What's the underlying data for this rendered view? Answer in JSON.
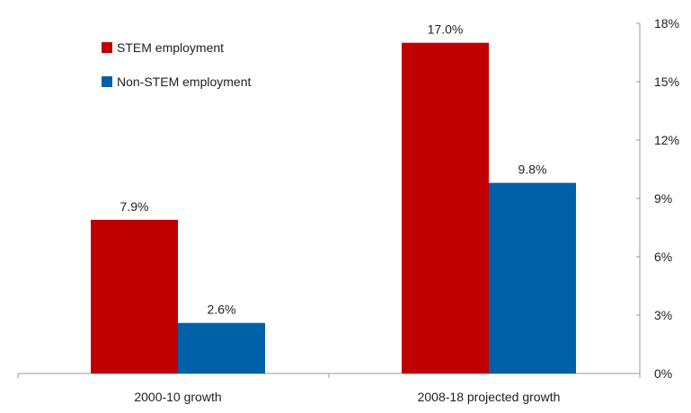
{
  "chart_data": {
    "type": "bar",
    "title": "",
    "xlabel": "",
    "ylabel": "",
    "categories": [
      "2000-10 growth",
      "2008-18 projected growth"
    ],
    "series": [
      {
        "name": "STEM employment",
        "values": [
          7.9,
          17.0
        ],
        "labels": [
          "7.9%",
          "17.0%"
        ],
        "color": "#C00000"
      },
      {
        "name": "Non-STEM employment",
        "values": [
          2.6,
          9.8
        ],
        "labels": [
          "2.6%",
          "9.8%"
        ],
        "color": "#0060A8"
      }
    ],
    "ylim": [
      0,
      18
    ],
    "yticks": [
      0,
      3,
      6,
      9,
      12,
      15,
      18
    ],
    "ytick_labels": [
      "0%",
      "3%",
      "6%",
      "9%",
      "12%",
      "15%",
      "18%"
    ],
    "y_axis_side": "right",
    "legend_position": "top-left",
    "grid": false
  }
}
